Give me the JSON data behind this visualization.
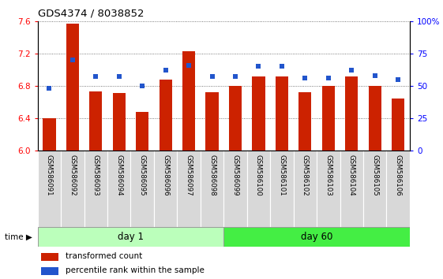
{
  "title": "GDS4374 / 8038852",
  "samples": [
    "GSM586091",
    "GSM586092",
    "GSM586093",
    "GSM586094",
    "GSM586095",
    "GSM586096",
    "GSM586097",
    "GSM586098",
    "GSM586099",
    "GSM586100",
    "GSM586101",
    "GSM586102",
    "GSM586103",
    "GSM586104",
    "GSM586105",
    "GSM586106"
  ],
  "red_values": [
    6.4,
    7.57,
    6.73,
    6.71,
    6.48,
    6.88,
    7.23,
    6.72,
    6.8,
    6.92,
    6.92,
    6.72,
    6.8,
    6.92,
    6.8,
    6.64
  ],
  "blue_values": [
    48,
    70,
    57,
    57,
    50,
    62,
    66,
    57,
    57,
    65,
    65,
    56,
    56,
    62,
    58,
    55
  ],
  "day1_samples": 8,
  "day60_samples": 8,
  "ylim_left": [
    6.0,
    7.6
  ],
  "ylim_right": [
    0,
    100
  ],
  "yticks_left": [
    6.0,
    6.4,
    6.8,
    7.2,
    7.6
  ],
  "yticks_right": [
    0,
    25,
    50,
    75,
    100
  ],
  "ytick_labels_right": [
    "0",
    "25",
    "50",
    "75",
    "100%"
  ],
  "bar_color": "#cc2200",
  "blue_color": "#2255cc",
  "day1_color": "#bbffbb",
  "day60_color": "#44ee44",
  "grid_color": "#555555",
  "bar_width": 0.55,
  "legend_red": "transformed count",
  "legend_blue": "percentile rank within the sample",
  "time_label": "time",
  "day1_label": "day 1",
  "day60_label": "day 60"
}
